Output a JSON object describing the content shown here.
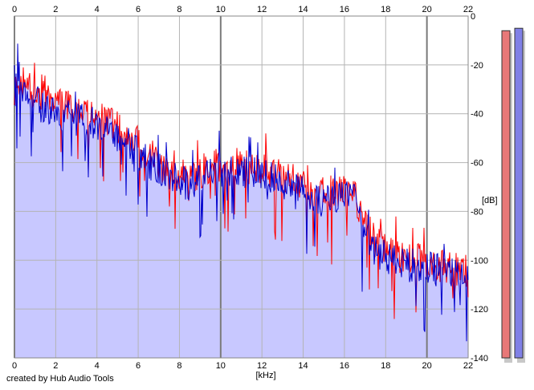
{
  "chart_data": {
    "type": "area",
    "xlabel": "[kHz]",
    "ylabel": "[dB]",
    "xlim": [
      0,
      22
    ],
    "ylim": [
      -140,
      0
    ],
    "xticks": [
      "0",
      "2",
      "4",
      "6",
      "8",
      "10",
      "12",
      "14",
      "16",
      "18",
      "20",
      "22"
    ],
    "yticks": [
      "0",
      "-20",
      "-40",
      "-60",
      "-80",
      "-100",
      "-120",
      "-140"
    ],
    "grid": true,
    "series": [
      {
        "color": "#ff0000",
        "envelope": [
          [
            0.0,
            -30
          ],
          [
            0.5,
            -27
          ],
          [
            1.0,
            -32
          ],
          [
            1.5,
            -33
          ],
          [
            2.0,
            -36
          ],
          [
            2.5,
            -37
          ],
          [
            3.0,
            -39
          ],
          [
            3.5,
            -40
          ],
          [
            4.0,
            -41
          ],
          [
            4.5,
            -43
          ],
          [
            5.0,
            -45
          ],
          [
            5.5,
            -48
          ],
          [
            6.0,
            -52
          ],
          [
            6.5,
            -56
          ],
          [
            7.0,
            -61
          ],
          [
            7.5,
            -63
          ],
          [
            8.0,
            -65
          ],
          [
            8.5,
            -66
          ],
          [
            9.0,
            -64
          ],
          [
            9.5,
            -62
          ],
          [
            10.0,
            -60
          ],
          [
            10.5,
            -61
          ],
          [
            11.0,
            -61
          ],
          [
            11.5,
            -62
          ],
          [
            12.0,
            -63
          ],
          [
            12.5,
            -64
          ],
          [
            13.0,
            -66
          ],
          [
            13.5,
            -67
          ],
          [
            14.0,
            -69
          ],
          [
            14.5,
            -72
          ],
          [
            15.0,
            -73
          ],
          [
            15.5,
            -72
          ],
          [
            16.0,
            -72
          ],
          [
            16.5,
            -74
          ],
          [
            17.0,
            -84
          ],
          [
            17.5,
            -93
          ],
          [
            18.0,
            -96
          ],
          [
            18.5,
            -98
          ],
          [
            19.0,
            -100
          ],
          [
            19.5,
            -100
          ],
          [
            20.0,
            -101
          ],
          [
            20.5,
            -102
          ],
          [
            21.0,
            -103
          ],
          [
            21.5,
            -104
          ],
          [
            22.0,
            -105
          ]
        ]
      },
      {
        "color": "#0000cc",
        "envelope": [
          [
            0.0,
            -22
          ],
          [
            0.5,
            -30
          ],
          [
            1.0,
            -35
          ],
          [
            1.5,
            -38
          ],
          [
            2.0,
            -40
          ],
          [
            2.5,
            -41
          ],
          [
            3.0,
            -42
          ],
          [
            3.5,
            -43
          ],
          [
            4.0,
            -44
          ],
          [
            4.5,
            -46
          ],
          [
            5.0,
            -49
          ],
          [
            5.5,
            -52
          ],
          [
            6.0,
            -56
          ],
          [
            6.5,
            -60
          ],
          [
            7.0,
            -63
          ],
          [
            7.5,
            -64
          ],
          [
            8.0,
            -67
          ],
          [
            8.5,
            -69
          ],
          [
            9.0,
            -66
          ],
          [
            9.5,
            -64
          ],
          [
            10.0,
            -63
          ],
          [
            10.5,
            -64
          ],
          [
            11.0,
            -64
          ],
          [
            11.5,
            -64
          ],
          [
            12.0,
            -65
          ],
          [
            12.5,
            -66
          ],
          [
            13.0,
            -68
          ],
          [
            13.5,
            -70
          ],
          [
            14.0,
            -72
          ],
          [
            14.5,
            -75
          ],
          [
            15.0,
            -76
          ],
          [
            15.5,
            -75
          ],
          [
            16.0,
            -74
          ],
          [
            16.5,
            -76
          ],
          [
            17.0,
            -88
          ],
          [
            17.5,
            -97
          ],
          [
            18.0,
            -99
          ],
          [
            18.5,
            -100
          ],
          [
            19.0,
            -102
          ],
          [
            19.5,
            -102
          ],
          [
            20.0,
            -103
          ],
          [
            20.5,
            -104
          ],
          [
            21.0,
            -105
          ],
          [
            21.5,
            -106
          ],
          [
            22.0,
            -107
          ]
        ]
      }
    ],
    "level_meters": [
      {
        "color": "#e87878",
        "level_db": -6
      },
      {
        "color": "#8080e6",
        "level_db": -5
      }
    ],
    "fill_color": "#c8c8ff"
  },
  "credit": "created by Hub Audio Tools"
}
